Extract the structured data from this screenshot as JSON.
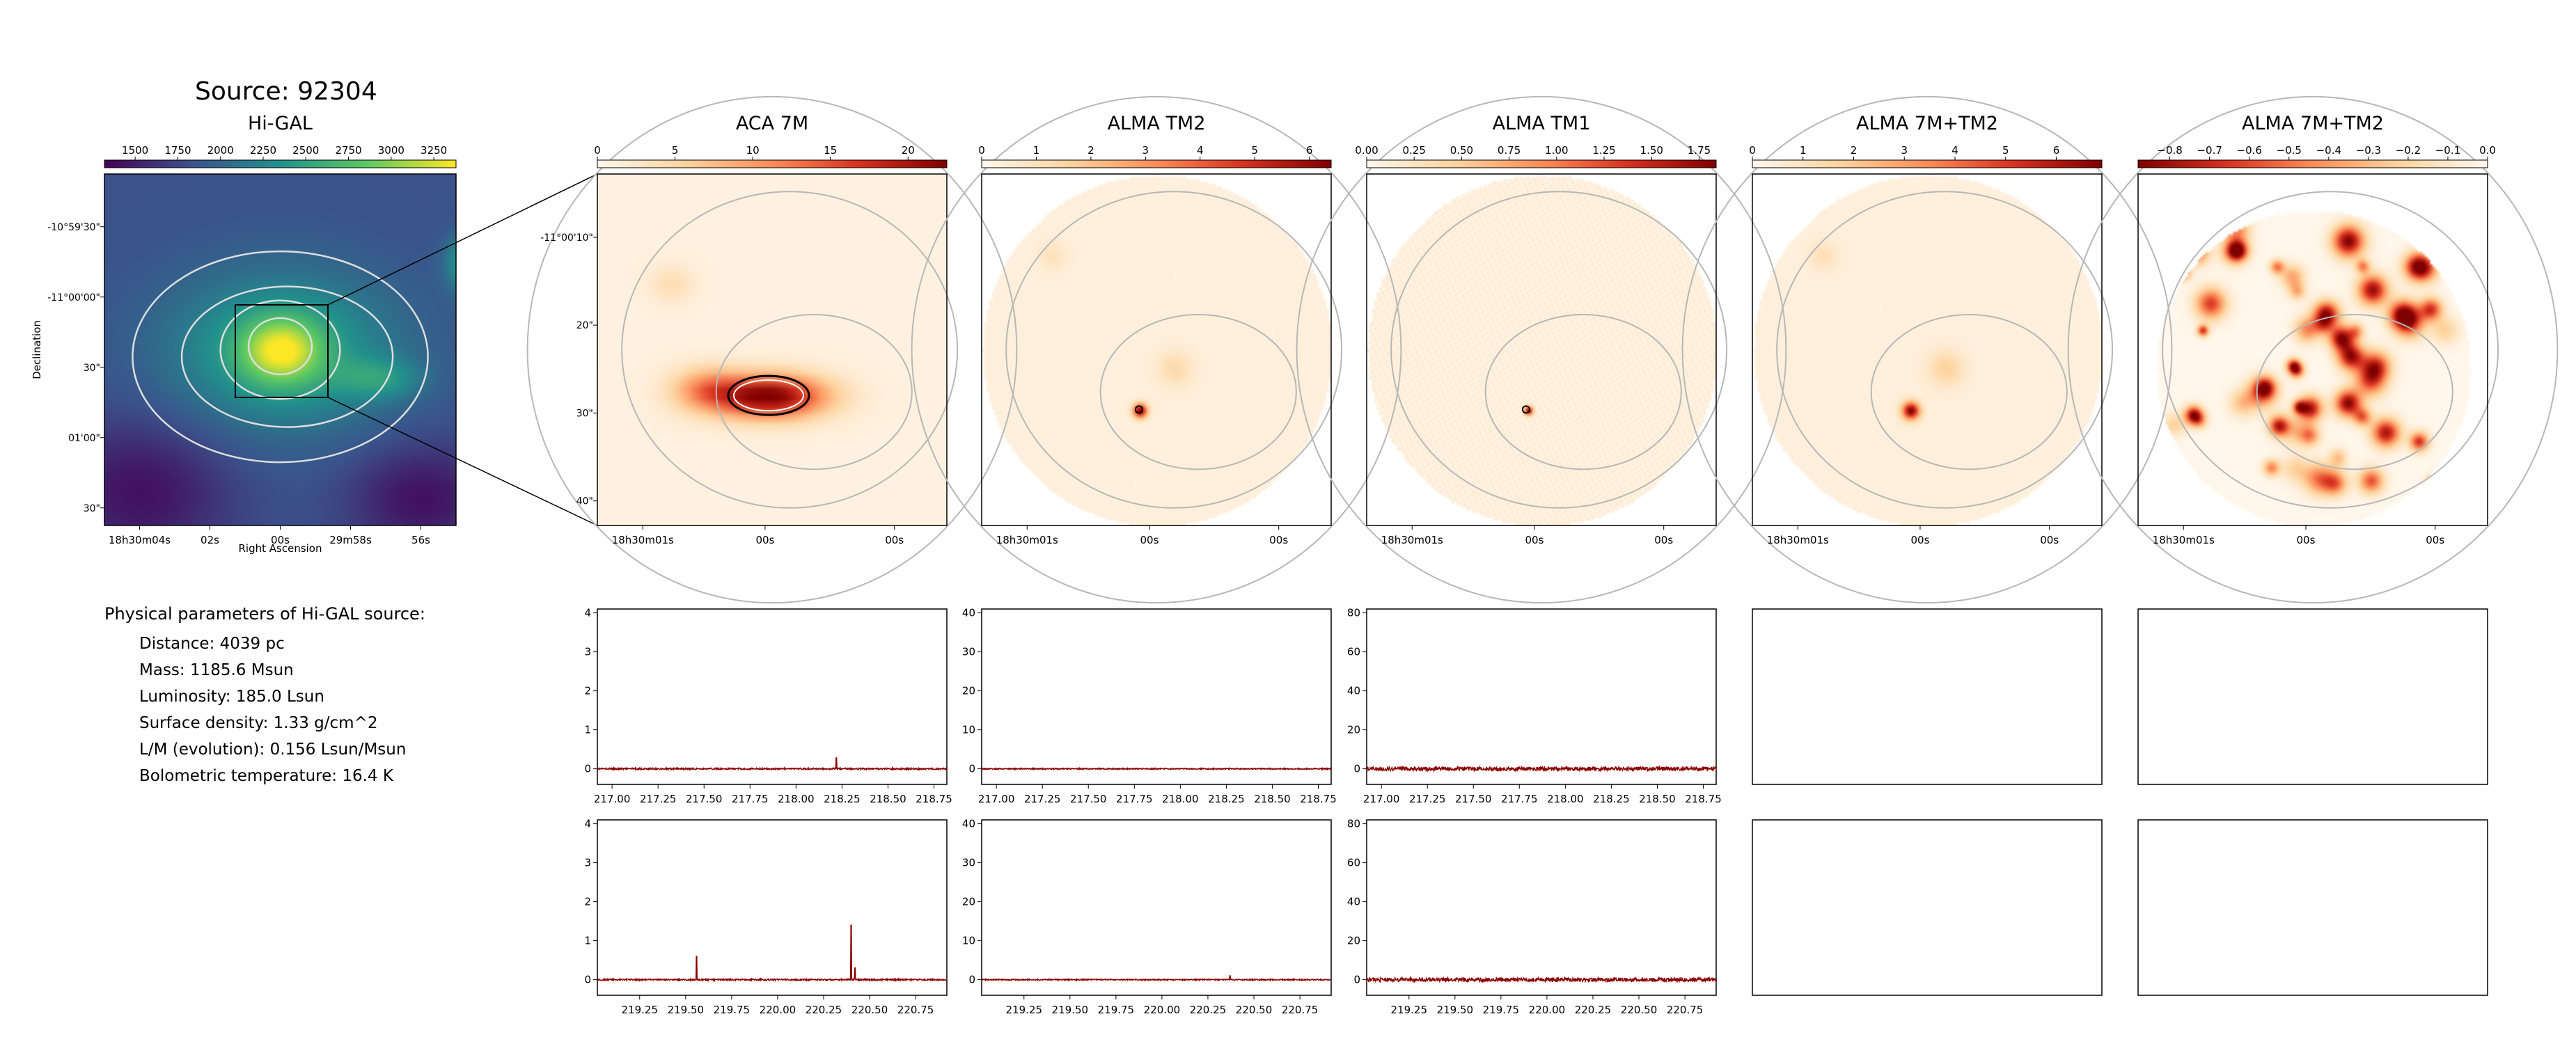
{
  "source_title": "Source: 92304",
  "physical": {
    "title": "Physical parameters of Hi-GAL source:",
    "items": [
      "Distance: 4039 pc",
      "Mass: 1185.6 Msun",
      "Luminosity: 185.0 Lsun",
      "Surface density: 1.33 g/cm^2",
      "L/M (evolution): 0.156 Lsun/Msun",
      "Bolometric temperature: 16.4 K"
    ]
  },
  "colors": {
    "viridis": [
      "#440154",
      "#3b528b",
      "#21918c",
      "#5ec962",
      "#fde725"
    ],
    "orrd": [
      "#fff7ec",
      "#fdd49e",
      "#fc8d59",
      "#d7301f",
      "#7f0000"
    ],
    "spectrum": "#8b0000",
    "contour_map": "#dddddd",
    "contour_panel": "#b7b7b7"
  },
  "chart_data": [
    {
      "type": "heatmap",
      "title": "Hi-GAL",
      "colormap": "viridis",
      "colorbar_ticks": [
        "1500",
        "1750",
        "2000",
        "2250",
        "2500",
        "2750",
        "3000",
        "3250"
      ],
      "colorbar_range": [
        1320,
        3380
      ],
      "xlabel": "Right Ascension",
      "ylabel": "Declination",
      "x_ticks": [
        "18h30m04s",
        "02s",
        "00s",
        "29m58s",
        "56s"
      ],
      "y_ticks": [
        "-10°59'30\"",
        "-11°00'00\"",
        "30\"",
        "01'00\"",
        "30\""
      ]
    },
    {
      "type": "heatmap",
      "title": "ACA 7M",
      "colormap": "orrd",
      "colorbar_ticks": [
        "0",
        "5",
        "10",
        "15",
        "20"
      ],
      "colorbar_range": [
        0,
        22.5
      ],
      "x_ticks": [
        "18h30m01s",
        "00s",
        "00s"
      ],
      "y_ticks": [
        "-11°00'10\"",
        "20\"",
        "30\"",
        "40\""
      ]
    },
    {
      "type": "heatmap",
      "title": "ALMA TM2",
      "colormap": "orrd",
      "colorbar_ticks": [
        "0",
        "1",
        "2",
        "3",
        "4",
        "5",
        "6"
      ],
      "colorbar_range": [
        0,
        6.4
      ],
      "x_ticks": [
        "18h30m01s",
        "00s",
        "00s"
      ]
    },
    {
      "type": "heatmap",
      "title": "ALMA TM1",
      "colormap": "orrd",
      "colorbar_ticks": [
        "0.00",
        "0.25",
        "0.50",
        "0.75",
        "1.00",
        "1.25",
        "1.50",
        "1.75"
      ],
      "colorbar_range": [
        0,
        1.84
      ],
      "x_ticks": [
        "18h30m01s",
        "00s",
        "00s"
      ]
    },
    {
      "type": "heatmap",
      "title": "ALMA 7M+TM2",
      "colormap": "orrd",
      "colorbar_ticks": [
        "0",
        "1",
        "2",
        "3",
        "4",
        "5",
        "6"
      ],
      "colorbar_range": [
        0,
        6.9
      ],
      "x_ticks": [
        "18h30m01s",
        "00s",
        "00s"
      ]
    },
    {
      "type": "heatmap",
      "title": "ALMA 7M+TM2",
      "colormap": "orrd_reversed",
      "colorbar_ticks": [
        "−0.8",
        "−0.7",
        "−0.6",
        "−0.5",
        "−0.4",
        "−0.3",
        "−0.2",
        "−0.1",
        "0.0"
      ],
      "colorbar_range": [
        -0.88,
        0
      ],
      "x_ticks": [
        "18h30m01s",
        "00s",
        "00s"
      ]
    },
    {
      "type": "line",
      "panel": "ACA 7M / spw 217-219 GHz",
      "xlim": [
        216.92,
        218.82
      ],
      "ylim": [
        -0.4,
        4.1
      ],
      "x_ticks": [
        217.0,
        217.25,
        217.5,
        217.75,
        218.0,
        218.25,
        218.5,
        218.75
      ],
      "y_ticks": [
        0,
        1,
        2,
        3,
        4
      ],
      "baseline": 0,
      "noise": 0.02,
      "peaks": [
        {
          "x": 218.22,
          "y": 0.28
        }
      ]
    },
    {
      "type": "line",
      "panel": "ALMA TM2 / spw 217-219 GHz",
      "xlim": [
        216.92,
        218.82
      ],
      "ylim": [
        -4,
        41
      ],
      "x_ticks": [
        217.0,
        217.25,
        217.5,
        217.75,
        218.0,
        218.25,
        218.5,
        218.75
      ],
      "y_ticks": [
        0,
        10,
        20,
        30,
        40
      ],
      "baseline": 0,
      "noise": 0.15,
      "peaks": []
    },
    {
      "type": "line",
      "panel": "ALMA TM1 / spw 217-219 GHz",
      "xlim": [
        216.92,
        218.82
      ],
      "ylim": [
        -8,
        82
      ],
      "x_ticks": [
        217.0,
        217.25,
        217.5,
        217.75,
        218.0,
        218.25,
        218.5,
        218.75
      ],
      "y_ticks": [
        0,
        20,
        40,
        60,
        80
      ],
      "baseline": 0,
      "noise": 1.0,
      "peaks": []
    },
    {
      "type": "line",
      "panel": "ACA 7M / spw 219-221 GHz",
      "xlim": [
        219.02,
        220.92
      ],
      "ylim": [
        -0.4,
        4.1
      ],
      "x_ticks": [
        219.25,
        219.5,
        219.75,
        220.0,
        220.25,
        220.5,
        220.75
      ],
      "y_ticks": [
        0,
        1,
        2,
        3,
        4
      ],
      "baseline": 0,
      "noise": 0.02,
      "peaks": [
        {
          "x": 219.56,
          "y": 0.6
        },
        {
          "x": 220.4,
          "y": 1.4
        },
        {
          "x": 220.42,
          "y": 0.3
        }
      ]
    },
    {
      "type": "line",
      "panel": "ALMA TM2 / spw 219-221 GHz",
      "xlim": [
        219.02,
        220.92
      ],
      "ylim": [
        -4,
        41
      ],
      "x_ticks": [
        219.25,
        219.5,
        219.75,
        220.0,
        220.25,
        220.5,
        220.75
      ],
      "y_ticks": [
        0,
        10,
        20,
        30,
        40
      ],
      "baseline": 0,
      "noise": 0.15,
      "peaks": [
        {
          "x": 220.37,
          "y": 1.0
        }
      ]
    },
    {
      "type": "line",
      "panel": "ALMA TM1 / spw 219-221 GHz",
      "xlim": [
        219.02,
        220.92
      ],
      "ylim": [
        -8,
        82
      ],
      "x_ticks": [
        219.25,
        219.5,
        219.75,
        220.0,
        220.25,
        220.5,
        220.75
      ],
      "y_ticks": [
        0,
        20,
        40,
        60,
        80
      ],
      "baseline": 0,
      "noise": 1.0,
      "peaks": []
    }
  ]
}
